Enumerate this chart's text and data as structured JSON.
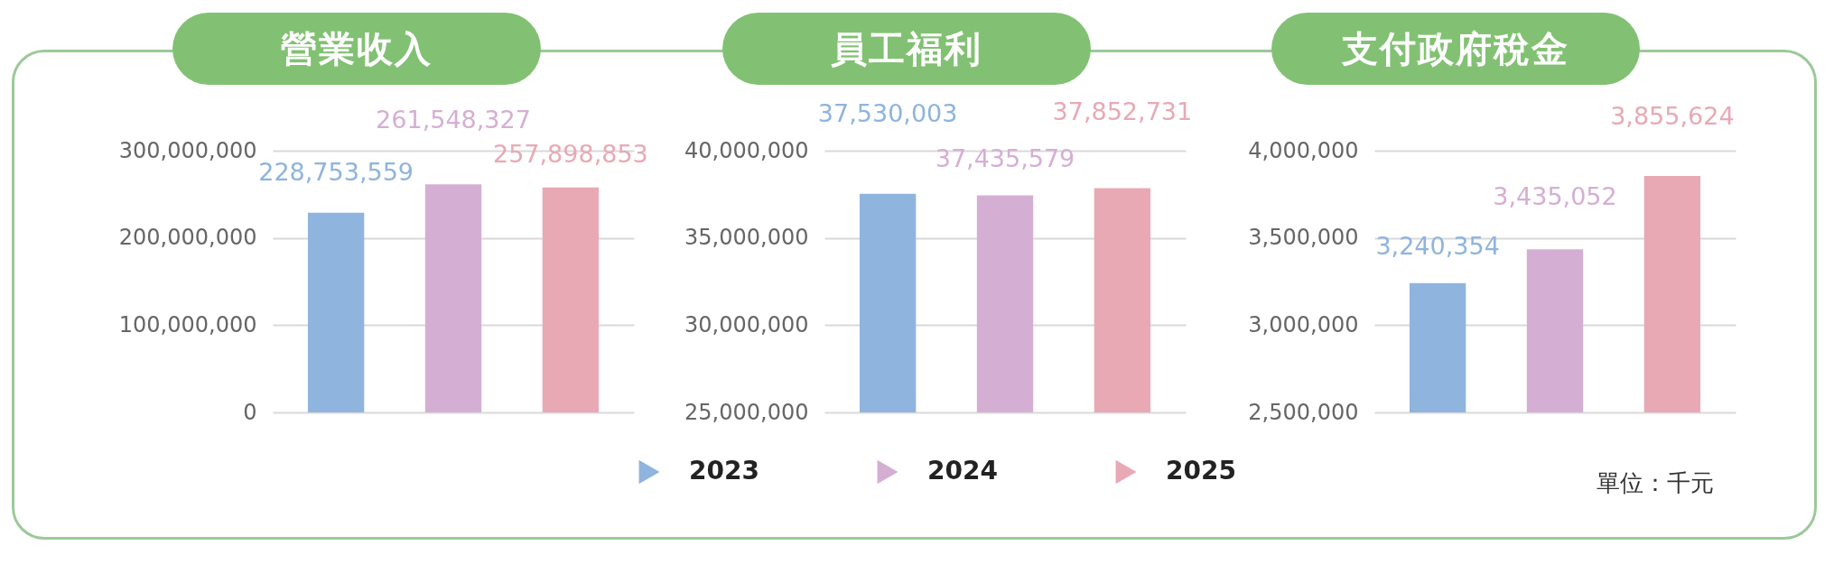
{
  "chart_data": [
    {
      "type": "bar",
      "title": "營業收入",
      "categories": [
        null
      ],
      "series": [
        {
          "color": "#8fb4de",
          "values": [
            228753559
          ],
          "value_labels": [
            "228,753,559"
          ]
        },
        {
          "color": "#d5afd3",
          "values": [
            261548327
          ],
          "value_labels": [
            "261,548,327"
          ]
        },
        {
          "color": "#e8a9b5",
          "values": [
            257898853
          ],
          "value_labels": [
            "257,898,853"
          ]
        }
      ],
      "ylim": [
        0,
        300000000
      ],
      "yticks": [
        0,
        {
          "value": 100000000,
          "label": "100,000,000"
        },
        {
          "value": 200000000,
          "label": "200,000,000"
        },
        {
          "value": 300000000,
          "label": "300,000,000"
        }
      ],
      "grid": "y",
      "tick_labels": "y"
    },
    {
      "type": "bar",
      "title": "員工福利",
      "categories": [
        null
      ],
      "series": [
        {
          "name": "2023",
          "color": "#8fb4de",
          "values": [
            37530003
          ],
          "value_labels": [
            "37,530,003"
          ]
        },
        {
          "name": "2024",
          "color": "#d5afd3",
          "values": [
            37435579
          ],
          "value_labels": [
            "37,435,579"
          ]
        },
        {
          "name": "2025",
          "color": "#e8a9b5",
          "values": [
            37852731
          ],
          "value_labels": [
            "37,852,731"
          ]
        }
      ],
      "ylim": [
        25000000,
        40000000
      ],
      "yticks": [
        {
          "value": 25000000,
          "label": "25,000,000"
        },
        {
          "value": 30000000,
          "label": "30,000,000"
        },
        {
          "value": 35000000,
          "label": "35,000,000"
        },
        {
          "value": 40000000,
          "label": "40,000,000"
        }
      ],
      "grid": "y",
      "tick_labels": "y",
      "legend": "bottom"
    },
    {
      "type": "bar",
      "title": "支付政府稅金",
      "categories": [
        null
      ],
      "series": [
        {
          "color": "#8fb4de",
          "values": [
            3240354
          ],
          "value_labels": [
            "3,240,354"
          ]
        },
        {
          "color": "#d5afd3",
          "values": [
            3435052
          ],
          "value_labels": [
            "3,435,052"
          ]
        },
        {
          "color": "#e8a9b5",
          "values": [
            3855624
          ],
          "value_labels": [
            "3,855,624"
          ]
        }
      ],
      "ylim": [
        2500000,
        4000000
      ],
      "yticks": [
        {
          "value": 2500000,
          "label": "2,500,000"
        },
        {
          "value": 3000000,
          "label": "3,000,000"
        },
        {
          "value": 3500000,
          "label": "3,500,000"
        },
        {
          "value": 4000000,
          "label": "4,000,000"
        }
      ],
      "grid": "y",
      "tick_labels": "y",
      "annotations": [
        "單位：千元"
      ]
    }
  ]
}
